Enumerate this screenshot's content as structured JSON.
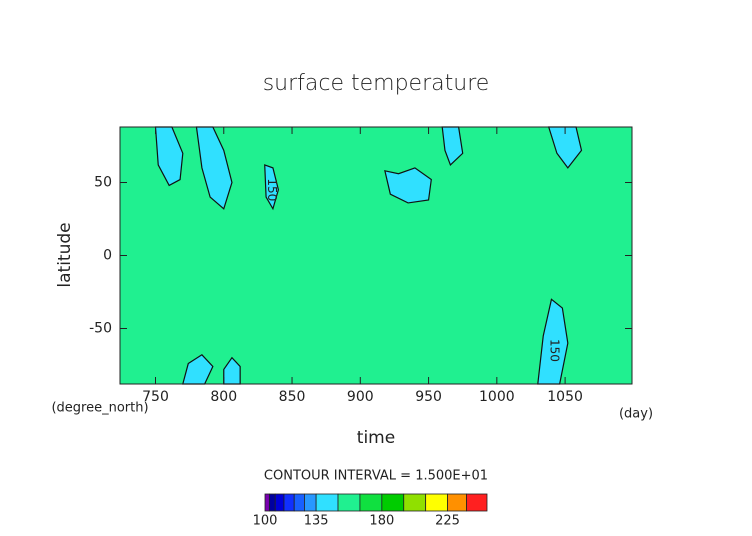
{
  "chart_data": {
    "type": "contour",
    "title": "surface temperature",
    "xlabel": "time",
    "ylabel": "latitude",
    "ylabel_unit": "(degree_north)",
    "xlabel_unit": "(day)",
    "xlim": [
      724,
      1099
    ],
    "ylim": [
      -88,
      88
    ],
    "xticks": [
      750,
      800,
      850,
      900,
      950,
      1000,
      1050
    ],
    "yticks": [
      -50,
      0,
      50
    ],
    "base_value": 155,
    "regions": [
      {
        "value": 140,
        "x": [
          750,
          762,
          770,
          768,
          760,
          752
        ],
        "y": [
          88,
          88,
          70,
          52,
          48,
          62
        ]
      },
      {
        "value": 140,
        "x": [
          780,
          792,
          800,
          806,
          800,
          790,
          784
        ],
        "y": [
          88,
          88,
          72,
          50,
          32,
          40,
          60
        ]
      },
      {
        "value": 140,
        "x": [
          830,
          836,
          840,
          836,
          831
        ],
        "y": [
          62,
          60,
          45,
          32,
          40
        ]
      },
      {
        "value": 140,
        "x": [
          918,
          928,
          940,
          952,
          950,
          935,
          922
        ],
        "y": [
          58,
          56,
          60,
          52,
          38,
          36,
          42
        ]
      },
      {
        "value": 140,
        "x": [
          960,
          972,
          975,
          966,
          962
        ],
        "y": [
          88,
          88,
          70,
          62,
          72
        ]
      },
      {
        "value": 140,
        "x": [
          1038,
          1058,
          1062,
          1052,
          1044
        ],
        "y": [
          88,
          88,
          72,
          60,
          70
        ]
      },
      {
        "value": 140,
        "x": [
          770,
          786,
          792,
          784,
          774
        ],
        "y": [
          -88,
          -88,
          -76,
          -68,
          -74
        ]
      },
      {
        "value": 140,
        "x": [
          800,
          812,
          812,
          806,
          800
        ],
        "y": [
          -88,
          -88,
          -76,
          -70,
          -78
        ]
      },
      {
        "value": 140,
        "x": [
          1030,
          1046,
          1052,
          1048,
          1040,
          1034
        ],
        "y": [
          -88,
          -88,
          -60,
          -36,
          -30,
          -55
        ]
      }
    ],
    "contour_labels": [
      {
        "value": 150,
        "x": 835,
        "y": 45
      },
      {
        "value": 150,
        "x": 1042,
        "y": -65
      }
    ],
    "contour_note": "CONTOUR INTERVAL = 1.500E+01",
    "colorbar": {
      "levels": [
        100,
        103,
        107,
        113,
        120,
        127,
        135,
        150,
        165,
        180,
        195,
        210,
        225,
        238,
        252
      ],
      "colors": [
        "#7a00b0",
        "#0000a0",
        "#0000d8",
        "#1030ff",
        "#1860ff",
        "#2898ff",
        "#30e0ff",
        "#20f090",
        "#10e040",
        "#00cc00",
        "#90e000",
        "#ffff00",
        "#ff9000",
        "#ff2020"
      ],
      "ticks": [
        100,
        135,
        180,
        225
      ]
    }
  }
}
